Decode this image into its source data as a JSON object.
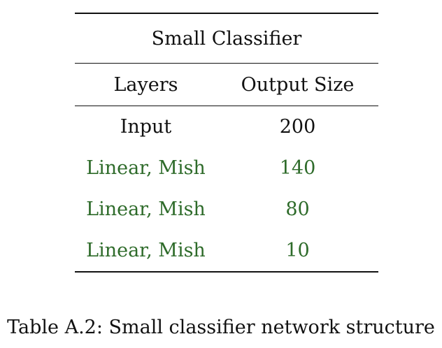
{
  "table": {
    "title": "Small Classifier",
    "headers": [
      "Layers",
      "Output Size"
    ],
    "rows": [
      {
        "layer": "Input",
        "size": "200",
        "color": "#111111"
      },
      {
        "layer": "Linear, Mish",
        "size": "140",
        "color": "#2e6b2a"
      },
      {
        "layer": "Linear, Mish",
        "size": "80",
        "color": "#2e6b2a"
      },
      {
        "layer": "Linear, Mish",
        "size": "10",
        "color": "#2e6b2a"
      }
    ]
  },
  "caption": "Table A.2: Small classifier network structure"
}
